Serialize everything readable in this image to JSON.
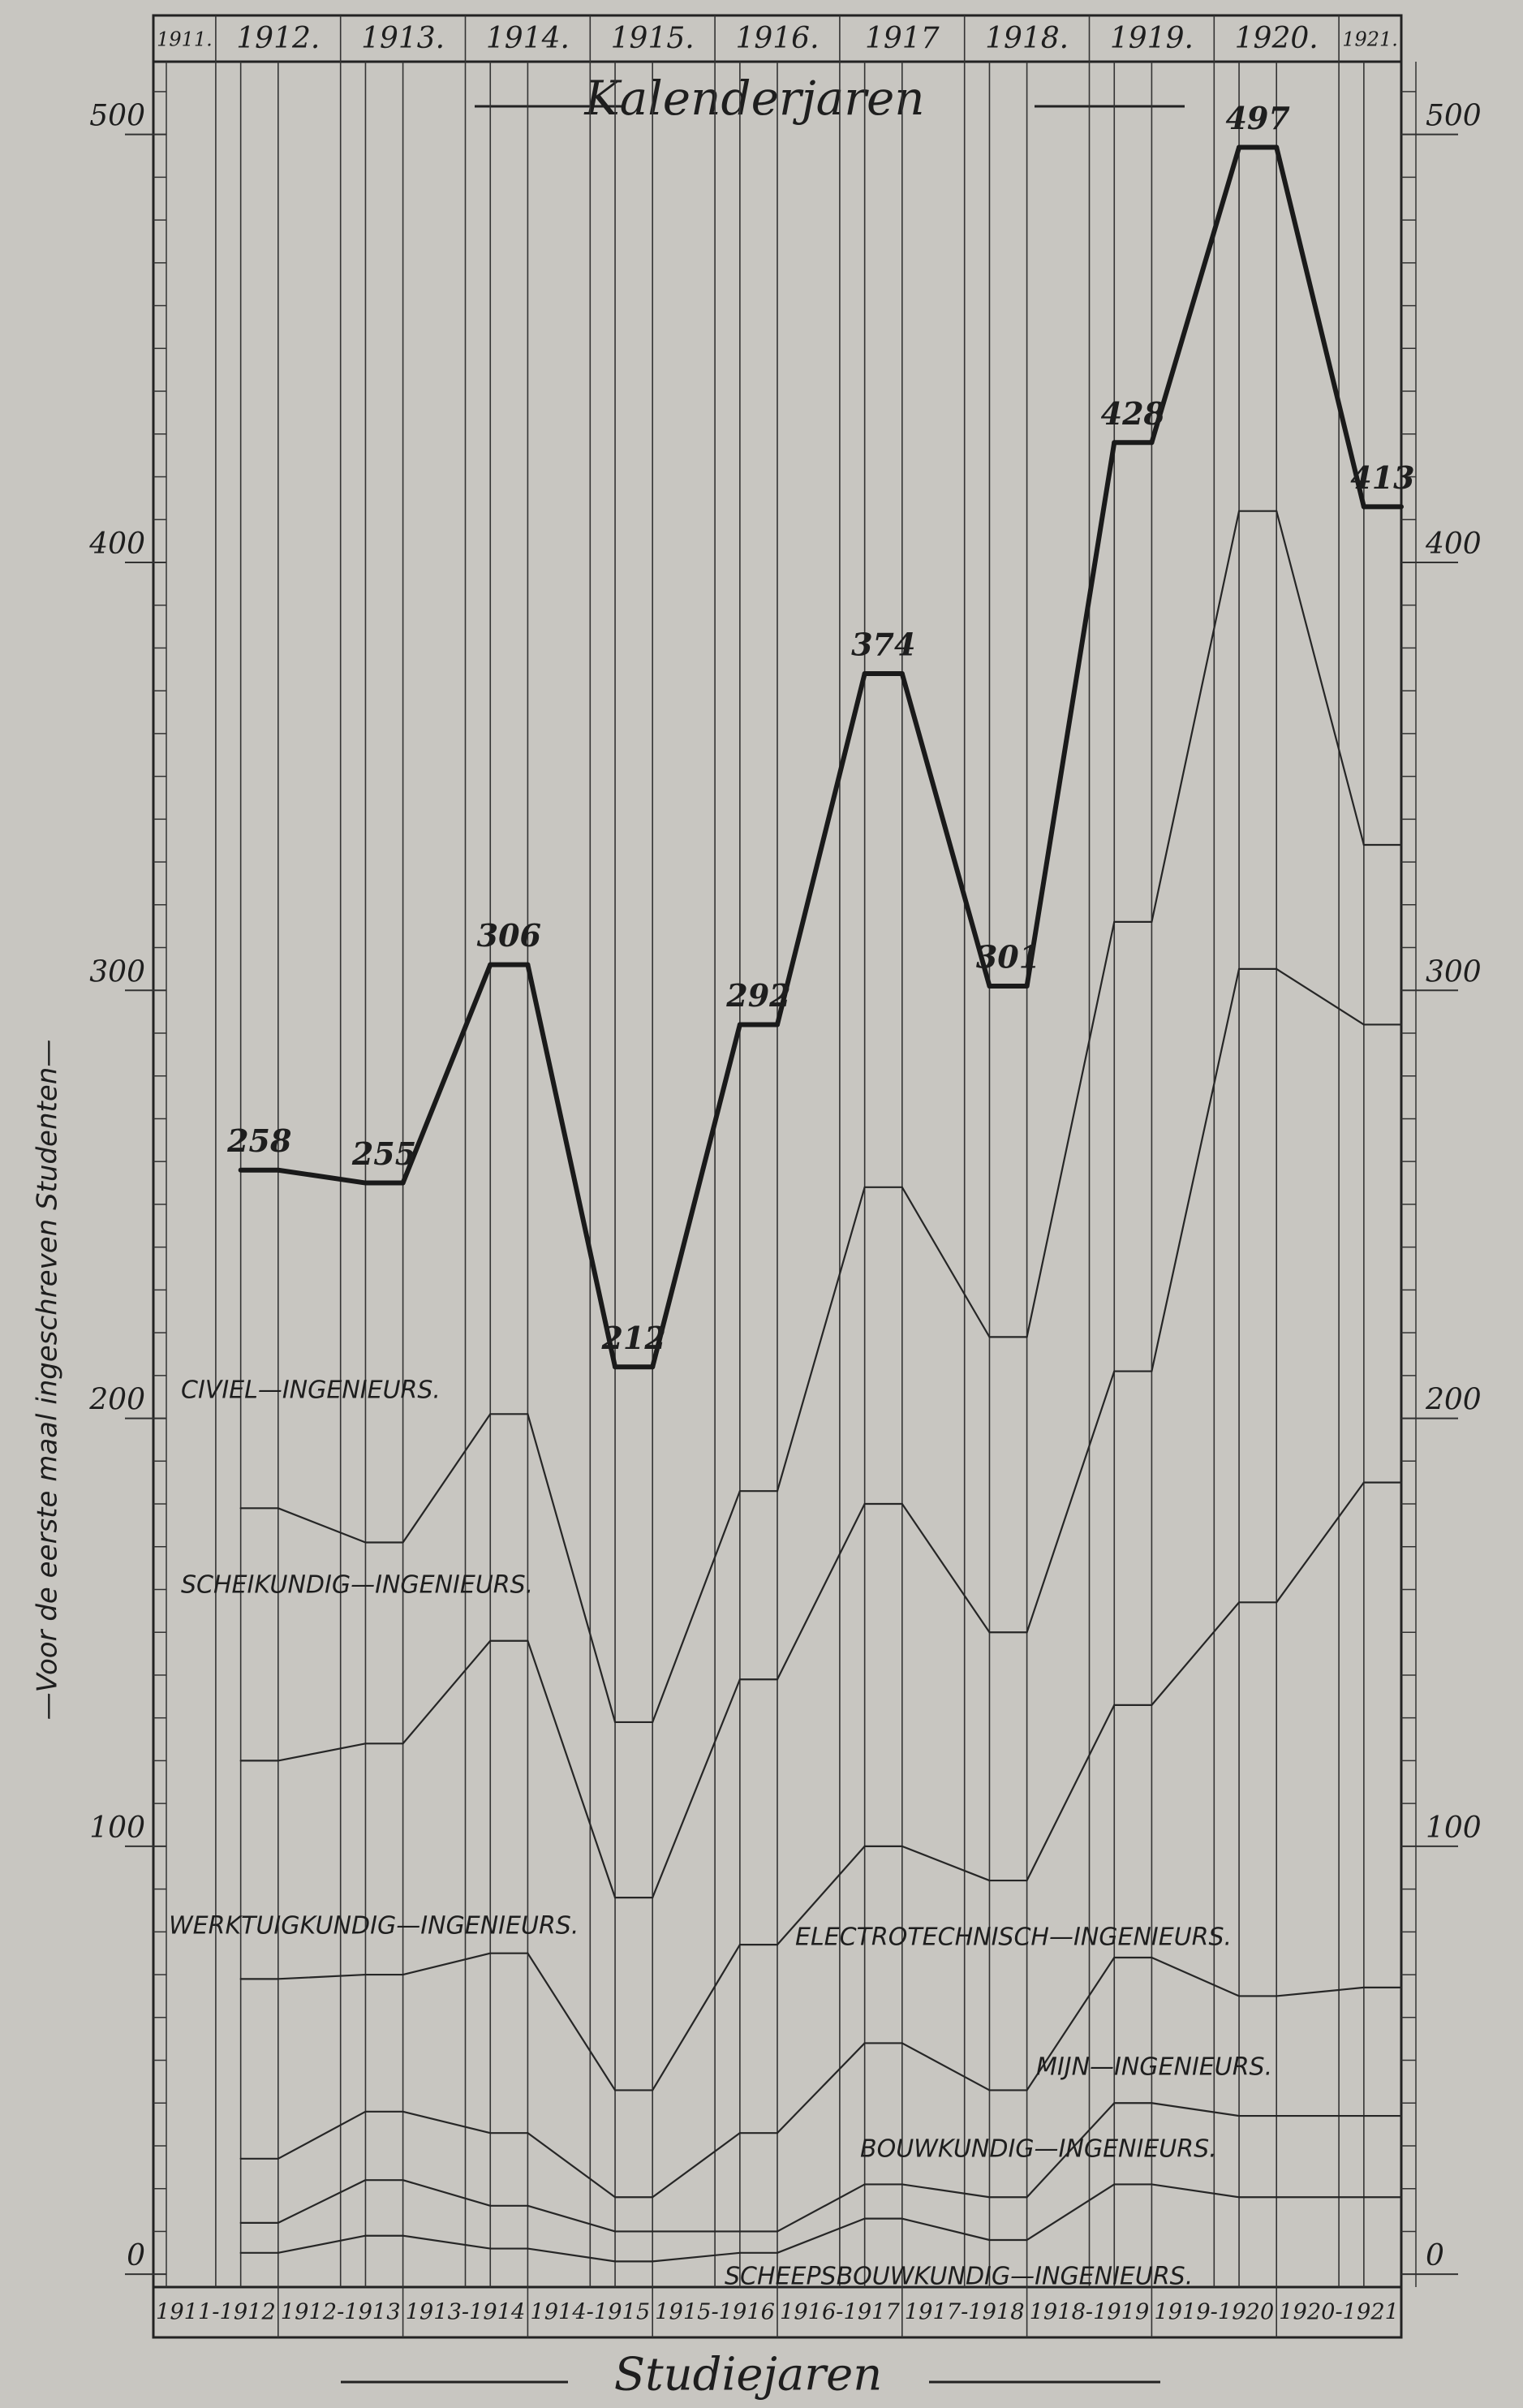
{
  "chart_data": {
    "type": "stacked-step",
    "title": "Kalenderjaren",
    "x_label": "Studiejaren",
    "y_label": "—Voor de eerste maal ingeschreven Studenten—",
    "calendar_years": [
      "1911.",
      "1912.",
      "1913.",
      "1914.",
      "1915.",
      "1916.",
      "1917",
      "1918.",
      "1919.",
      "1920.",
      "1921."
    ],
    "categories": [
      "1911-1912",
      "1912-1913",
      "1913-1914",
      "1914-1915",
      "1915-1916",
      "1916-1917",
      "1917-1918",
      "1918-1919",
      "1919-1920",
      "1920-1921"
    ],
    "series": [
      {
        "name": "SCHEEPSBOUWKUNDIG—INGENIEURS.",
        "color": "#262626",
        "values": [
          5,
          9,
          6,
          3,
          5,
          13,
          8,
          21,
          18,
          18
        ]
      },
      {
        "name": "BOUWKUNDIG—INGENIEURS.",
        "color": "#262626",
        "values": [
          7,
          13,
          10,
          7,
          5,
          8,
          10,
          19,
          19,
          19
        ]
      },
      {
        "name": "MIJN—INGENIEURS.",
        "color": "#262626",
        "values": [
          15,
          16,
          17,
          8,
          23,
          33,
          25,
          34,
          28,
          30
        ]
      },
      {
        "name": "ELECTROTECHNISCH—INGENIEURS.",
        "color": "#262626",
        "values": [
          42,
          32,
          42,
          25,
          44,
          46,
          49,
          59,
          92,
          118
        ]
      },
      {
        "name": "WERKTUIGKUNDIG—INGENIEURS.",
        "color": "#262626",
        "values": [
          51,
          54,
          73,
          45,
          62,
          80,
          58,
          78,
          148,
          107
        ]
      },
      {
        "name": "SCHEIKUNDIG—INGENIEURS.",
        "color": "#262626",
        "values": [
          59,
          47,
          53,
          41,
          44,
          74,
          69,
          105,
          107,
          42
        ]
      },
      {
        "name": "CIVIEL—INGENIEURS.",
        "color": "#1a1a1a",
        "values": [
          79,
          84,
          105,
          83,
          109,
          120,
          82,
          112,
          85,
          79
        ]
      }
    ],
    "totals": [
      258,
      255,
      306,
      212,
      292,
      374,
      301,
      428,
      497,
      413
    ],
    "ylim": [
      -3,
      517
    ],
    "yticks": [
      0,
      100,
      200,
      300,
      400,
      500
    ],
    "minor_yticks": [
      0,
      10,
      20,
      30,
      40,
      50,
      60,
      70,
      80,
      90,
      100,
      110,
      120,
      130,
      140,
      150,
      160,
      170,
      180,
      190,
      200,
      210,
      220,
      230,
      240,
      250,
      260,
      270,
      280,
      290,
      300,
      310,
      320,
      330,
      340,
      350,
      360,
      370,
      380,
      390,
      400,
      410,
      420,
      430,
      440,
      450,
      460,
      470,
      480,
      490,
      500,
      510
    ]
  }
}
